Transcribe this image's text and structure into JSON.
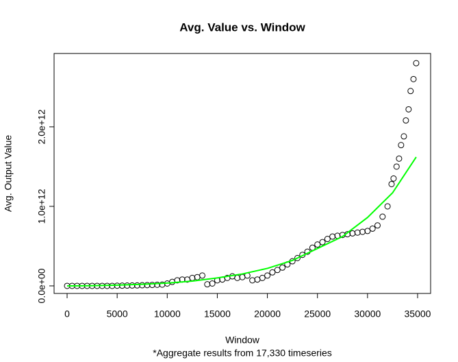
{
  "chart_data": {
    "type": "scatter",
    "title": "Avg. Value vs. Window",
    "x_label": "Window",
    "y_label": "Avg. Output Value",
    "caption": "*Aggregate results from 17,330 timeseries",
    "xlim": [
      -1300,
      36300
    ],
    "ylim": [
      -95000000000.0,
      2922000000000.0
    ],
    "xticks": [
      0,
      5000,
      10000,
      15000,
      20000,
      25000,
      30000,
      35000
    ],
    "yticks": [
      {
        "value": 0,
        "label": "0.0e+00"
      },
      {
        "value": 1000000000000.0,
        "label": "1.0e+12"
      },
      {
        "value": 2000000000000.0,
        "label": "2.0e+12"
      }
    ],
    "series": [
      {
        "type": "scatter",
        "color": "#000000",
        "x": [
          0,
          500,
          1000,
          1500,
          2000,
          2500,
          3000,
          3500,
          4000,
          4500,
          5000,
          5500,
          6000,
          6500,
          7000,
          7500,
          8000,
          8500,
          9000,
          9500,
          10000,
          10500,
          11000,
          11500,
          12000,
          12500,
          13000,
          13500,
          14000,
          14500,
          15000,
          15500,
          16000,
          16500,
          17000,
          17500,
          18000,
          18500,
          19000,
          19500,
          20000,
          20500,
          21000,
          21500,
          22000,
          22500,
          23000,
          23500,
          24000,
          24500,
          25000,
          25500,
          26000,
          26500,
          27000,
          27500,
          28000,
          28500,
          29000,
          29500,
          30000,
          30500,
          31000,
          31500,
          32000,
          32400,
          32600,
          32900,
          33150,
          33350,
          33630,
          33830,
          34100,
          34300,
          34590,
          34860
        ],
        "values": [
          0,
          0,
          0,
          0,
          0,
          0,
          0,
          0,
          0,
          0,
          2000000000.0,
          3000000000.0,
          4000000000.0,
          5000000000.0,
          6000000000.0,
          8000000000.0,
          10000000000.0,
          12000000000.0,
          14000000000.0,
          16000000000.0,
          30000000000.0,
          50000000000.0,
          70000000000.0,
          80000000000.0,
          80000000000.0,
          100000000000.0,
          110000000000.0,
          130000000000.0,
          20000000000.0,
          30000000000.0,
          70000000000.0,
          80000000000.0,
          100000000000.0,
          120000000000.0,
          100000000000.0,
          110000000000.0,
          130000000000.0,
          70000000000.0,
          80000000000.0,
          100000000000.0,
          130000000000.0,
          170000000000.0,
          200000000000.0,
          230000000000.0,
          270000000000.0,
          310000000000.0,
          350000000000.0,
          390000000000.0,
          430000000000.0,
          480000000000.0,
          520000000000.0,
          550000000000.0,
          590000000000.0,
          620000000000.0,
          630000000000.0,
          640000000000.0,
          650000000000.0,
          660000000000.0,
          670000000000.0,
          680000000000.0,
          690000000000.0,
          720000000000.0,
          760000000000.0,
          870000000000.0,
          1000000000000.0,
          1280000000000.0,
          1350000000000.0,
          1500000000000.0,
          1600000000000.0,
          1770000000000.0,
          1880000000000.0,
          2080000000000.0,
          2220000000000.0,
          2450000000000.0,
          2600000000000.0,
          2800000000000.0
        ]
      },
      {
        "type": "line",
        "color": "#00ff00",
        "x": [
          0,
          2500,
          5000,
          7500,
          10000,
          12500,
          15000,
          17500,
          20000,
          22500,
          25000,
          27500,
          30000,
          32500,
          34860
        ],
        "values": [
          0,
          3000000000.0,
          10000000000.0,
          20000000000.0,
          35000000000.0,
          60000000000.0,
          100000000000.0,
          150000000000.0,
          220000000000.0,
          320000000000.0,
          470000000000.0,
          620000000000.0,
          860000000000.0,
          1170000000000.0,
          1620000000000.0
        ]
      }
    ]
  }
}
